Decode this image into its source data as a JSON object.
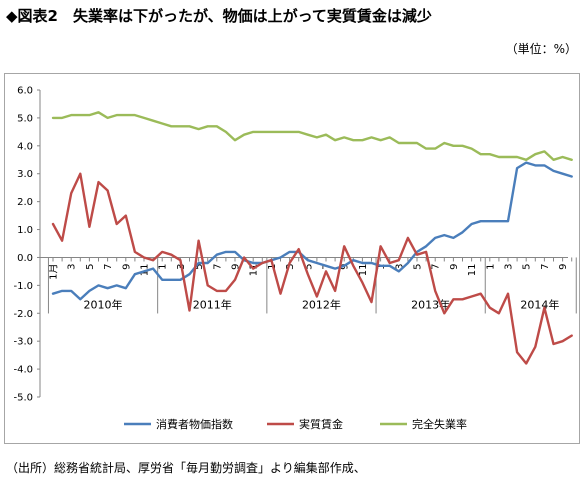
{
  "header": {
    "title": "◆図表2　失業率は下がったが、物価は上がって実質賃金は減少",
    "unit": "（単位：%）"
  },
  "footer": {
    "source": "（出所）総務省統計局、厚労省「毎月勤労調査」より編集部作成、"
  },
  "chart_data": {
    "type": "line",
    "ylim": [
      -5.0,
      6.0
    ],
    "ytick_labels": [
      "6.0",
      "5.0",
      "4.0",
      "3.0",
      "2.0",
      "1.0",
      "0.0",
      "-1.0",
      "-2.0",
      "-3.0",
      "-4.0",
      "-5.0"
    ],
    "month_tick_labels": [
      "1月",
      "3",
      "5",
      "7",
      "9",
      "11",
      "1",
      "3",
      "5",
      "7",
      "9",
      "11",
      "1",
      "3",
      "5",
      "7",
      "9",
      "11",
      "1",
      "3",
      "5",
      "7",
      "9",
      "11",
      "1",
      "3",
      "5",
      "7",
      "9"
    ],
    "year_labels": [
      "2010年",
      "2011年",
      "2012年",
      "2013年",
      "2014年"
    ],
    "grid": false,
    "legend_position": "bottom",
    "x": [
      "2010-01",
      "2010-02",
      "2010-03",
      "2010-04",
      "2010-05",
      "2010-06",
      "2010-07",
      "2010-08",
      "2010-09",
      "2010-10",
      "2010-11",
      "2010-12",
      "2011-01",
      "2011-02",
      "2011-03",
      "2011-04",
      "2011-05",
      "2011-06",
      "2011-07",
      "2011-08",
      "2011-09",
      "2011-10",
      "2011-11",
      "2011-12",
      "2012-01",
      "2012-02",
      "2012-03",
      "2012-04",
      "2012-05",
      "2012-06",
      "2012-07",
      "2012-08",
      "2012-09",
      "2012-10",
      "2012-11",
      "2012-12",
      "2013-01",
      "2013-02",
      "2013-03",
      "2013-04",
      "2013-05",
      "2013-06",
      "2013-07",
      "2013-08",
      "2013-09",
      "2013-10",
      "2013-11",
      "2013-12",
      "2014-01",
      "2014-02",
      "2014-03",
      "2014-04",
      "2014-05",
      "2014-06",
      "2014-07",
      "2014-08",
      "2014-09",
      "2014-10"
    ],
    "series": [
      {
        "name": "消費者物価指数",
        "color": "#4a7ebb",
        "values": [
          -1.3,
          -1.2,
          -1.2,
          -1.5,
          -1.2,
          -1.0,
          -1.1,
          -1.0,
          -1.1,
          -0.6,
          -0.5,
          -0.4,
          -0.8,
          -0.8,
          -0.8,
          -0.6,
          -0.2,
          -0.2,
          0.1,
          0.2,
          0.2,
          -0.1,
          -0.2,
          -0.2,
          -0.1,
          0.0,
          0.2,
          0.2,
          -0.1,
          -0.2,
          -0.3,
          -0.4,
          -0.3,
          -0.1,
          -0.2,
          -0.2,
          -0.3,
          -0.3,
          -0.5,
          -0.2,
          0.2,
          0.4,
          0.7,
          0.8,
          0.7,
          0.9,
          1.2,
          1.3,
          1.3,
          1.3,
          1.3,
          3.2,
          3.4,
          3.3,
          3.3,
          3.1,
          3.0,
          2.9
        ]
      },
      {
        "name": "実質賃金",
        "color": "#be4b48",
        "values": [
          1.2,
          0.6,
          2.3,
          3.0,
          1.1,
          2.7,
          2.4,
          1.2,
          1.5,
          0.2,
          0.0,
          -0.1,
          0.2,
          0.1,
          -0.1,
          -1.9,
          0.6,
          -1.0,
          -1.2,
          -1.2,
          -0.8,
          0.0,
          -0.4,
          -0.2,
          -0.1,
          -1.3,
          -0.2,
          0.3,
          -0.6,
          -1.4,
          -0.5,
          -1.2,
          0.4,
          -0.3,
          -0.9,
          -1.6,
          0.4,
          -0.2,
          -0.1,
          0.7,
          0.1,
          0.2,
          -1.2,
          -2.0,
          -1.5,
          -1.5,
          -1.4,
          -1.3,
          -1.8,
          -2.0,
          -1.3,
          -3.4,
          -3.8,
          -3.2,
          -1.8,
          -3.1,
          -3.0,
          -2.8
        ]
      },
      {
        "name": "完全失業率",
        "color": "#9bbb59",
        "values": [
          5.0,
          5.0,
          5.1,
          5.1,
          5.1,
          5.2,
          5.0,
          5.1,
          5.1,
          5.1,
          5.0,
          4.9,
          4.8,
          4.7,
          4.7,
          4.7,
          4.6,
          4.7,
          4.7,
          4.5,
          4.2,
          4.4,
          4.5,
          4.5,
          4.5,
          4.5,
          4.5,
          4.5,
          4.4,
          4.3,
          4.4,
          4.2,
          4.3,
          4.2,
          4.2,
          4.3,
          4.2,
          4.3,
          4.1,
          4.1,
          4.1,
          3.9,
          3.9,
          4.1,
          4.0,
          4.0,
          3.9,
          3.7,
          3.7,
          3.6,
          3.6,
          3.6,
          3.5,
          3.7,
          3.8,
          3.5,
          3.6,
          3.5
        ]
      }
    ]
  }
}
